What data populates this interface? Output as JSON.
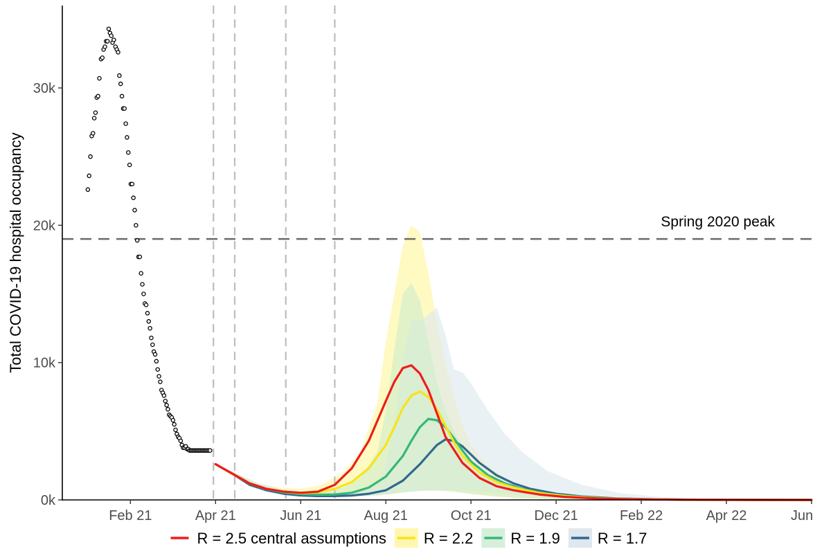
{
  "chart_data": {
    "type": "line",
    "title": "",
    "xlabel": "",
    "ylabel": "Total COVID-19 hospital occupancy",
    "x_ticks": [
      "Feb 21",
      "Apr 21",
      "Jun 21",
      "Aug 21",
      "Oct 21",
      "Dec 21",
      "Feb 22",
      "Apr 22",
      "Jun 22"
    ],
    "y_ticks": [
      "0k",
      "10k",
      "20k",
      "30k"
    ],
    "y_tick_values": [
      0,
      10000,
      20000,
      30000
    ],
    "ylim": [
      0,
      36000
    ],
    "xlim_months": [
      -0.6,
      17.0
    ],
    "x_tick_months": [
      1,
      3,
      5,
      7,
      9,
      11,
      13,
      15,
      17
    ],
    "grid": false,
    "legend_position": "bottom",
    "reference_line": {
      "label": "Spring 2020 peak",
      "value": 19000
    },
    "vertical_lines_months": [
      2.95,
      3.45,
      4.65,
      5.8
    ],
    "observed": {
      "months": [
        0.0,
        0.03,
        0.06,
        0.09,
        0.12,
        0.15,
        0.18,
        0.21,
        0.24,
        0.27,
        0.31,
        0.34,
        0.37,
        0.4,
        0.43,
        0.46,
        0.49,
        0.52,
        0.55,
        0.58,
        0.61,
        0.65,
        0.68,
        0.71,
        0.74,
        0.77,
        0.8,
        0.83,
        0.86,
        0.89,
        0.92,
        0.95,
        0.98,
        1.01,
        1.04,
        1.07,
        1.1,
        1.13,
        1.16,
        1.19,
        1.22,
        1.25,
        1.28,
        1.31,
        1.34,
        1.37,
        1.4,
        1.43,
        1.46,
        1.49,
        1.52,
        1.55,
        1.58,
        1.61,
        1.64,
        1.67,
        1.7,
        1.73,
        1.76,
        1.79,
        1.82,
        1.85,
        1.88,
        1.91,
        1.94,
        1.97,
        2.0,
        2.03,
        2.06,
        2.09,
        2.12,
        2.15,
        2.18,
        2.21,
        2.24,
        2.27,
        2.3,
        2.33,
        2.36,
        2.39,
        2.42,
        2.45,
        2.48,
        2.51,
        2.54,
        2.57,
        2.6,
        2.63,
        2.66,
        2.69,
        2.72,
        2.75,
        2.78,
        2.81,
        2.84,
        2.87
      ],
      "values": [
        22600,
        23600,
        25000,
        26500,
        26700,
        27800,
        28200,
        29300,
        29400,
        30700,
        32100,
        32200,
        32800,
        33000,
        33400,
        33400,
        34300,
        34000,
        33800,
        33300,
        33500,
        33000,
        32800,
        32600,
        30900,
        30300,
        29400,
        28500,
        28500,
        27400,
        26400,
        25300,
        24400,
        23000,
        23000,
        22000,
        21100,
        20000,
        18900,
        17700,
        17700,
        16500,
        15700,
        15000,
        14300,
        14200,
        13600,
        13000,
        12500,
        11800,
        11300,
        10800,
        10600,
        10100,
        9500,
        9000,
        8600,
        8000,
        7800,
        7600,
        7200,
        6900,
        6600,
        6200,
        6100,
        6000,
        5800,
        5500,
        5100,
        4800,
        4600,
        4500,
        4300,
        4000,
        3800,
        3800,
        3900,
        3700,
        3700,
        3600,
        3600,
        3600,
        3600,
        3600,
        3600,
        3600,
        3600,
        3600,
        3600,
        3600,
        3600,
        3600,
        3600,
        3600,
        3600,
        3600
      ]
    },
    "series": [
      {
        "name": "R = 2.5 central assumptions",
        "color": "#ee1c1c",
        "months": [
          3.0,
          3.4,
          3.8,
          4.2,
          4.6,
          5.0,
          5.4,
          5.8,
          6.2,
          6.6,
          7.0,
          7.2,
          7.4,
          7.6,
          7.8,
          8.0,
          8.2,
          8.4,
          8.8,
          9.2,
          9.6,
          10.0,
          10.6,
          11.2,
          12.0,
          13.0,
          14.0,
          15.0,
          16.0,
          17.0
        ],
        "values": [
          2600,
          1900,
          1200,
          800,
          600,
          520,
          600,
          1100,
          2300,
          4300,
          7200,
          8600,
          9600,
          9800,
          9200,
          8000,
          6300,
          4600,
          2700,
          1600,
          1000,
          700,
          400,
          220,
          100,
          40,
          15,
          5,
          2,
          1
        ]
      },
      {
        "name": "R = 2.2",
        "color": "#f6e41b",
        "months": [
          3.0,
          3.4,
          3.8,
          4.2,
          4.6,
          5.0,
          5.4,
          5.8,
          6.2,
          6.6,
          7.0,
          7.2,
          7.4,
          7.6,
          7.8,
          8.0,
          8.2,
          8.4,
          8.6,
          8.8,
          9.2,
          9.6,
          10.0,
          10.6,
          11.2,
          12.0,
          13.0,
          14.0,
          15.0,
          16.0,
          17.0
        ],
        "values": [
          2600,
          1900,
          1200,
          800,
          600,
          500,
          550,
          800,
          1300,
          2300,
          4000,
          5300,
          6700,
          7600,
          7900,
          7500,
          6600,
          5400,
          4200,
          3200,
          2000,
          1300,
          900,
          500,
          280,
          120,
          45,
          18,
          6,
          2,
          1
        ]
      },
      {
        "name": "R = 1.9",
        "color": "#35b779",
        "months": [
          3.0,
          3.4,
          3.8,
          4.2,
          4.6,
          5.0,
          5.4,
          5.8,
          6.2,
          6.6,
          7.0,
          7.4,
          7.6,
          7.8,
          8.0,
          8.2,
          8.4,
          8.6,
          8.8,
          9.0,
          9.4,
          9.8,
          10.2,
          10.8,
          11.4,
          12.2,
          13.0,
          14.0,
          15.0,
          16.0,
          17.0
        ],
        "values": [
          2600,
          1900,
          1200,
          800,
          550,
          420,
          380,
          400,
          520,
          900,
          1700,
          3200,
          4300,
          5300,
          5900,
          5800,
          5300,
          4500,
          3600,
          2800,
          1800,
          1200,
          800,
          450,
          260,
          120,
          55,
          20,
          7,
          2,
          1
        ]
      },
      {
        "name": "R = 1.7",
        "color": "#31688e",
        "months": [
          3.0,
          3.4,
          3.8,
          4.2,
          4.6,
          5.0,
          5.4,
          5.8,
          6.2,
          6.6,
          7.0,
          7.4,
          7.8,
          8.0,
          8.2,
          8.4,
          8.6,
          8.8,
          9.0,
          9.2,
          9.6,
          10.0,
          10.4,
          11.0,
          11.6,
          12.4,
          13.2,
          14.0,
          15.0,
          16.0,
          17.0
        ],
        "values": [
          2600,
          1900,
          1100,
          700,
          450,
          330,
          280,
          280,
          320,
          450,
          700,
          1400,
          2600,
          3300,
          4000,
          4400,
          4300,
          3900,
          3300,
          2700,
          1800,
          1200,
          800,
          450,
          250,
          110,
          50,
          22,
          8,
          3,
          1
        ]
      }
    ],
    "bands": [
      {
        "series": "R = 2.2",
        "color": "#fff59a",
        "months": [
          3.0,
          3.5,
          4.0,
          4.5,
          5.0,
          5.5,
          6.0,
          6.4,
          6.8,
          7.0,
          7.2,
          7.4,
          7.6,
          7.8,
          8.0,
          8.2,
          8.4,
          8.6,
          8.8,
          9.0,
          9.4,
          9.8,
          10.2,
          10.8,
          11.6,
          12.5,
          13.5,
          15.0,
          17.0
        ],
        "upper": [
          2600,
          1900,
          1200,
          900,
          800,
          1100,
          2000,
          3500,
          7000,
          11500,
          15000,
          18500,
          20000,
          19500,
          16500,
          13000,
          10000,
          7500,
          5500,
          4000,
          2500,
          1600,
          1000,
          600,
          300,
          140,
          60,
          20,
          5
        ],
        "lower": [
          2600,
          1800,
          1000,
          600,
          400,
          320,
          300,
          300,
          330,
          380,
          450,
          520,
          600,
          650,
          680,
          680,
          650,
          600,
          520,
          430,
          300,
          200,
          130,
          70,
          30,
          12,
          5,
          2,
          1
        ]
      },
      {
        "series": "R = 1.9",
        "color": "#cdeccc",
        "months": [
          3.0,
          3.5,
          4.0,
          4.5,
          5.0,
          5.5,
          6.0,
          6.4,
          6.8,
          7.0,
          7.2,
          7.4,
          7.6,
          7.8,
          8.0,
          8.2,
          8.4,
          8.6,
          8.8,
          9.0,
          9.4,
          9.8,
          10.2,
          10.8,
          11.6,
          12.5,
          13.5,
          15.0,
          17.0
        ],
        "upper": [
          2600,
          1900,
          1200,
          800,
          600,
          600,
          900,
          1600,
          3500,
          6500,
          11000,
          15000,
          15800,
          14500,
          11500,
          8500,
          6500,
          5000,
          3800,
          2800,
          1800,
          1200,
          800,
          450,
          220,
          100,
          40,
          12,
          3
        ],
        "lower": [
          2600,
          1800,
          1000,
          600,
          400,
          300,
          280,
          300,
          340,
          400,
          480,
          560,
          620,
          660,
          680,
          680,
          650,
          600,
          520,
          430,
          300,
          200,
          130,
          70,
          30,
          12,
          5,
          2,
          1
        ]
      },
      {
        "series": "R = 1.7",
        "color": "#dce8ee",
        "months": [
          3.0,
          3.5,
          4.0,
          4.5,
          5.0,
          5.5,
          6.0,
          6.4,
          6.8,
          7.0,
          7.2,
          7.4,
          7.6,
          7.8,
          8.0,
          8.2,
          8.4,
          8.6,
          8.8,
          9.0,
          9.4,
          9.8,
          10.2,
          10.8,
          11.6,
          12.5,
          13.5,
          15.0,
          17.0
        ],
        "upper": [
          2600,
          1900,
          1200,
          800,
          550,
          450,
          500,
          700,
          1300,
          2500,
          5500,
          10000,
          13200,
          13000,
          13500,
          14000,
          12000,
          9500,
          9300,
          8500,
          6500,
          4800,
          3500,
          2100,
          1100,
          500,
          200,
          60,
          10
        ],
        "lower": [
          2600,
          1800,
          1000,
          600,
          400,
          300,
          260,
          280,
          320,
          380,
          460,
          540,
          600,
          650,
          680,
          700,
          700,
          690,
          670,
          640,
          560,
          460,
          360,
          240,
          130,
          60,
          25,
          8,
          2
        ]
      }
    ]
  },
  "legend": [
    {
      "label": "R = 2.5 central assumptions",
      "color": "#ee1c1c",
      "fill": "#ffffff"
    },
    {
      "label": "R = 2.2",
      "color": "#f6e41b",
      "fill": "#fff7b0"
    },
    {
      "label": "R = 1.9",
      "color": "#35b779",
      "fill": "#d6efdb"
    },
    {
      "label": "R = 1.7",
      "color": "#31688e",
      "fill": "#dfe8ee"
    }
  ]
}
